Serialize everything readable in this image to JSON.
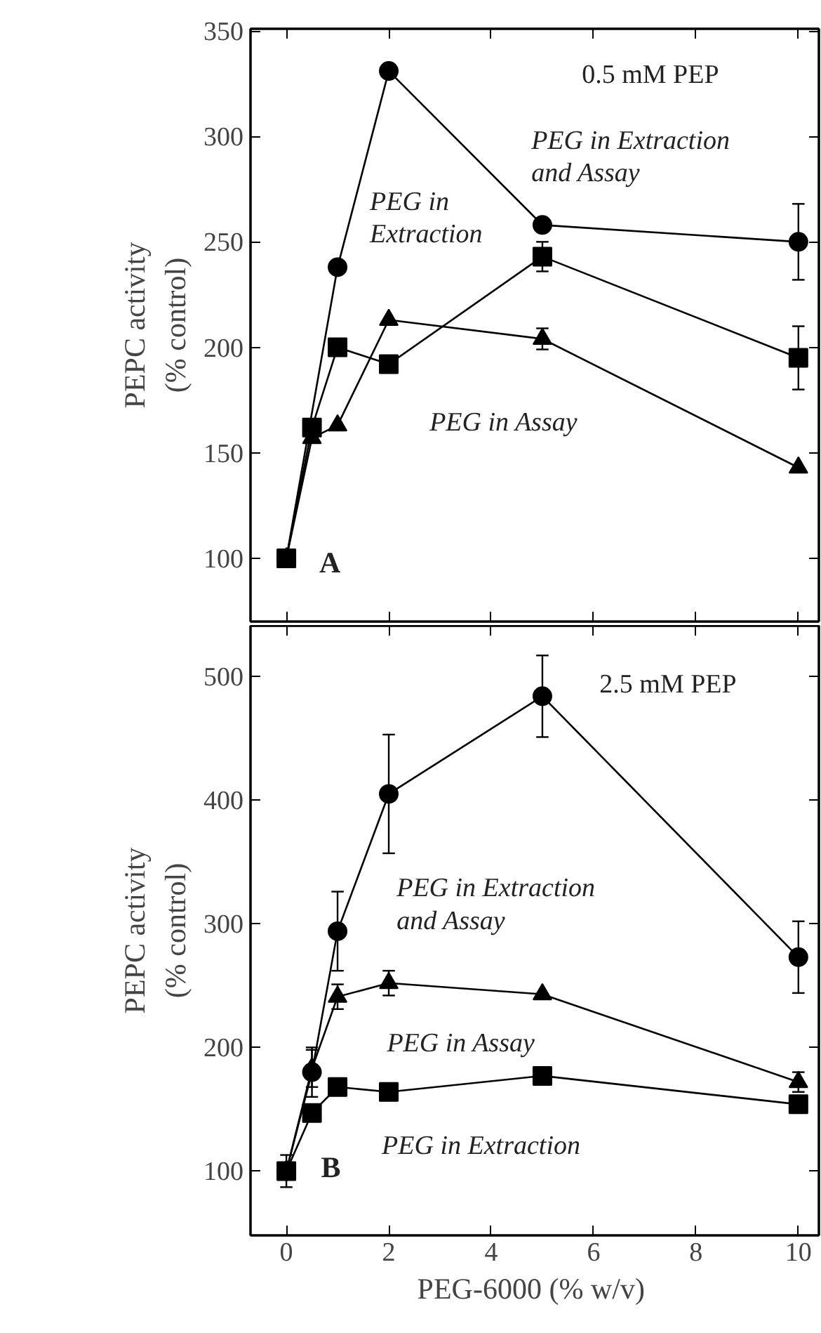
{
  "chart_data": [
    {
      "type": "line",
      "x": [
        0,
        0.5,
        1,
        2,
        5,
        10
      ],
      "ylabel": "PEPC activity\n(% control)",
      "xlim": [
        -0.7,
        10.4
      ],
      "xticks": [
        0,
        2,
        4,
        6,
        8,
        10
      ],
      "ylim": [
        70,
        351
      ],
      "yticks": [
        100,
        150,
        200,
        250,
        300,
        350
      ],
      "tick_labels": "y",
      "grid": false,
      "line_style": "solid",
      "series": [
        {
          "color": "#000000",
          "marker": "circle",
          "values": [
            100,
            null,
            238,
            331,
            258,
            250
          ],
          "errors": [
            null,
            null,
            null,
            null,
            null,
            18
          ]
        },
        {
          "color": "#000000",
          "marker": "triangle",
          "values": [
            100,
            157,
            163,
            213,
            204,
            143
          ],
          "errors": [
            null,
            null,
            null,
            null,
            5,
            null
          ]
        },
        {
          "color": "#000000",
          "marker": "square",
          "values": [
            100,
            162,
            200,
            192,
            243,
            195
          ],
          "errors": [
            null,
            null,
            null,
            null,
            7,
            15
          ]
        }
      ],
      "annotations": [
        "0.5 mM PEP",
        "PEG in Extraction\nand Assay",
        "PEG in\nExtraction",
        "PEG in Assay",
        "A"
      ]
    },
    {
      "type": "line",
      "x": [
        0,
        0.5,
        1,
        2,
        5,
        10
      ],
      "xlabel": "PEG-6000  (% w/v)",
      "ylabel": "PEPC activity\n(% control)",
      "xlim": [
        -0.7,
        10.4
      ],
      "xticks": [
        0,
        2,
        4,
        6,
        8,
        10
      ],
      "ylim": [
        48,
        541
      ],
      "yticks": [
        100,
        200,
        300,
        400,
        500
      ],
      "grid": false,
      "line_style": "solid",
      "series": [
        {
          "color": "#000000",
          "marker": "circle",
          "values": [
            100,
            180,
            294,
            405,
            484,
            273
          ],
          "errors": [
            13,
            20,
            32,
            48,
            33,
            29
          ]
        },
        {
          "color": "#000000",
          "marker": "triangle",
          "values": [
            100,
            183,
            241,
            252,
            243,
            172
          ],
          "errors": [
            null,
            15,
            10,
            10,
            null,
            8
          ]
        },
        {
          "color": "#000000",
          "marker": "square",
          "values": [
            100,
            147,
            168,
            164,
            177,
            154
          ],
          "errors": [
            null,
            null,
            null,
            null,
            null,
            null
          ]
        }
      ],
      "annotations": [
        "2.5 mM PEP",
        "PEG in Extraction\nand Assay",
        "PEG in Assay",
        "PEG in Extraction",
        "B"
      ]
    }
  ]
}
